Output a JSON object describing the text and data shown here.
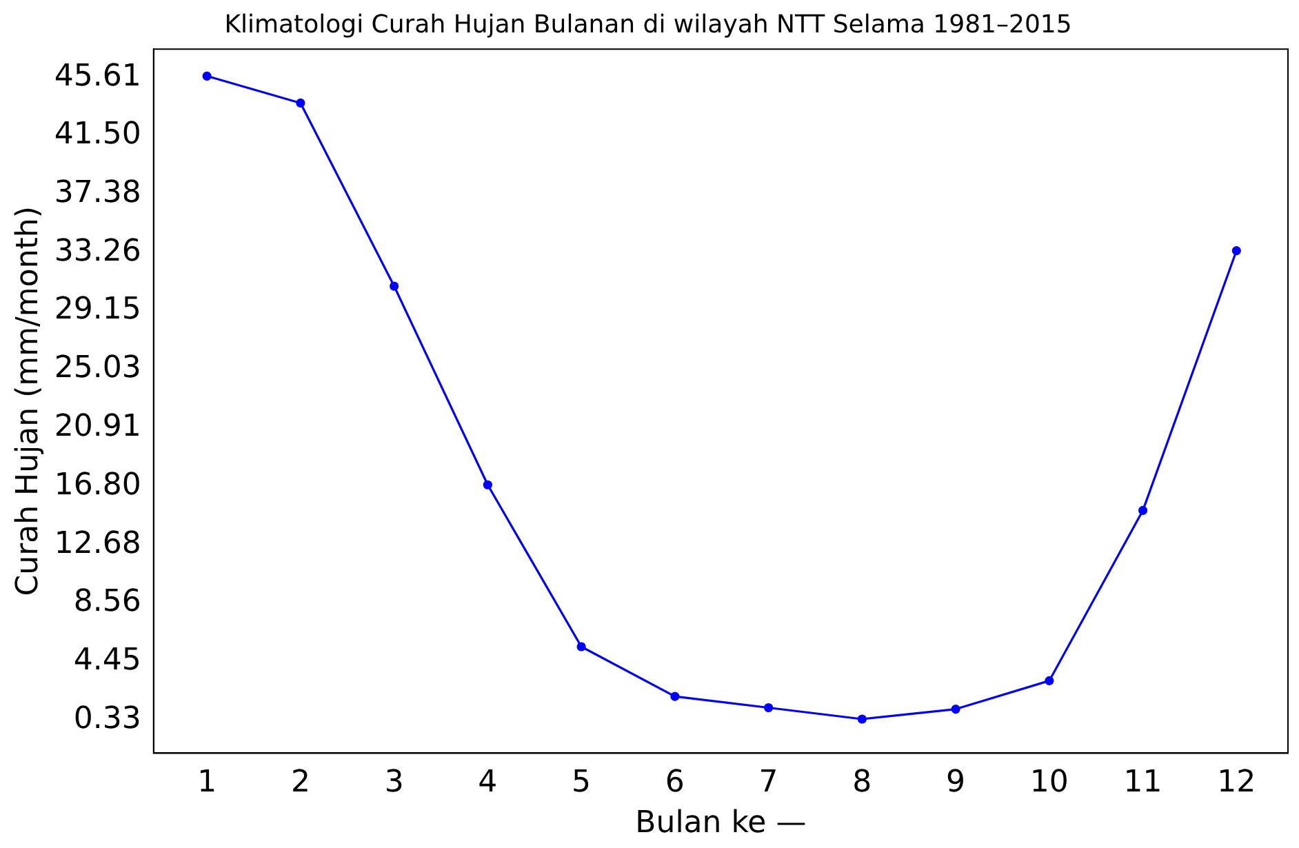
{
  "chart_data": {
    "type": "line",
    "title": "Klimatologi Curah Hujan Bulanan di wilayah NTT Selama 1981–2015",
    "xlabel": "Bulan ke —",
    "ylabel": "Curah Hujan (mm/month)",
    "x": [
      1,
      2,
      3,
      4,
      5,
      6,
      7,
      8,
      9,
      10,
      11,
      12
    ],
    "series": [
      {
        "color": "#0000ff",
        "values": [
          45.7,
          43.8,
          30.9,
          16.9,
          5.5,
          2.0,
          1.2,
          0.4,
          1.1,
          3.1,
          15.1,
          33.4
        ]
      }
    ],
    "xlim": [
      0.43,
      12.55
    ],
    "xticks": [
      1,
      2,
      3,
      4,
      5,
      6,
      7,
      8,
      9,
      10,
      11,
      12
    ],
    "ylim": [
      -2.0,
      47.6
    ],
    "yticks": [
      0.33,
      4.45,
      8.56,
      12.68,
      {
        "value": 16.8,
        "label": "16.80"
      },
      20.91,
      25.03,
      29.15,
      33.26,
      37.38,
      {
        "value": 41.5,
        "label": "41.50"
      },
      45.61
    ],
    "marker": "circle",
    "line_style": "solid",
    "grid": false,
    "legend": false
  }
}
